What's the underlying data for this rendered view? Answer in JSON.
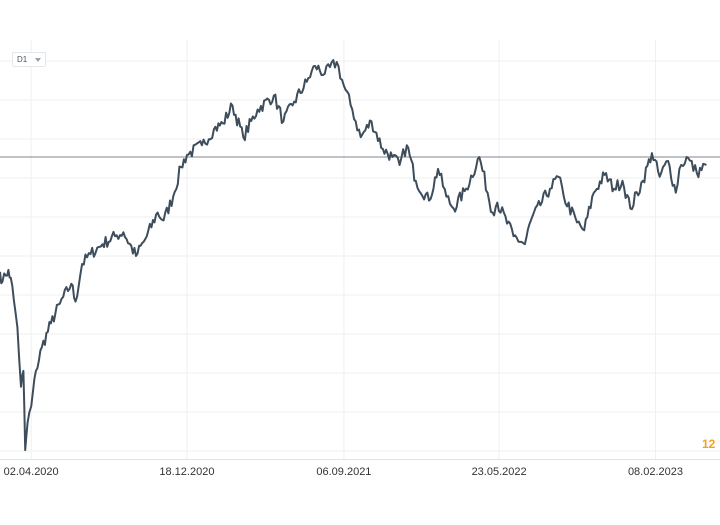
{
  "toolbar": {
    "timeframe_label": "D1"
  },
  "price_label": "12",
  "colors": {
    "line": "#3e4d5b",
    "grid": "#eef0f2",
    "ref_line": "#7f8790",
    "price": "#f3a21c",
    "axis": "#dfe3e7"
  },
  "chart_data": {
    "type": "line",
    "title": "",
    "xlabel": "",
    "ylabel": "",
    "timeframe": "D1",
    "x_ticks": [
      "02.04.2020",
      "18.12.2020",
      "06.09.2021",
      "23.05.2022",
      "08.02.2023"
    ],
    "xlim": [
      "2020-02-10",
      "2023-05-10"
    ],
    "ylim": [
      0,
      100
    ],
    "y_axis_labels_visible": false,
    "grid": true,
    "reference_line_value": 76.0,
    "series": [
      {
        "x": [
          "2020-02-10",
          "2020-02-14",
          "2020-02-20",
          "2020-02-24",
          "2020-02-28",
          "2020-03-04",
          "2020-03-10",
          "2020-03-16",
          "2020-03-20",
          "2020-03-23",
          "2020-03-27",
          "2020-04-02",
          "2020-04-10",
          "2020-04-20",
          "2020-05-05",
          "2020-05-20",
          "2020-06-08",
          "2020-06-15",
          "2020-06-26",
          "2020-07-10",
          "2020-07-30",
          "2020-08-20",
          "2020-09-03",
          "2020-09-24",
          "2020-10-12",
          "2020-10-30",
          "2020-11-09",
          "2020-11-25",
          "2020-12-08",
          "2020-12-18",
          "2021-01-12",
          "2021-02-01",
          "2021-02-16",
          "2021-03-04",
          "2021-03-22",
          "2021-04-15",
          "2021-05-12",
          "2021-05-28",
          "2021-06-15",
          "2021-07-06",
          "2021-07-20",
          "2021-08-05",
          "2021-08-25",
          "2021-09-06",
          "2021-09-20",
          "2021-10-04",
          "2021-10-22",
          "2021-11-10",
          "2021-11-26",
          "2021-12-08",
          "2021-12-20",
          "2022-01-04",
          "2022-01-26",
          "2022-02-10",
          "2022-02-24",
          "2022-03-08",
          "2022-03-29",
          "2022-04-20",
          "2022-05-12",
          "2022-05-20",
          "2022-06-16",
          "2022-07-05",
          "2022-07-15",
          "2022-08-16",
          "2022-08-30",
          "2022-09-08",
          "2022-09-30",
          "2022-10-12",
          "2022-10-28",
          "2022-11-15",
          "2022-12-01",
          "2022-12-15",
          "2022-12-28",
          "2023-01-18",
          "2023-02-02",
          "2023-02-15",
          "2023-03-01",
          "2023-03-14",
          "2023-03-20",
          "2023-04-01",
          "2023-04-18",
          "2023-05-04"
        ],
        "values": [
          47.0,
          44.5,
          46.0,
          47.5,
          45.5,
          40.0,
          33.0,
          18.0,
          22.0,
          2.0,
          9.0,
          13.0,
          22.0,
          28.0,
          34.0,
          39.0,
          44.0,
          39.5,
          49.0,
          51.5,
          54.0,
          56.0,
          57.0,
          51.0,
          56.0,
          62.0,
          60.0,
          66.0,
          73.5,
          76.5,
          79.0,
          83.0,
          84.5,
          89.0,
          81.0,
          88.0,
          91.5,
          85.0,
          90.0,
          95.0,
          99.0,
          97.0,
          100.0,
          94.0,
          88.0,
          81.0,
          85.0,
          78.0,
          76.0,
          74.0,
          79.0,
          70.0,
          65.0,
          73.0,
          66.0,
          63.0,
          68.0,
          76.0,
          62.0,
          64.5,
          56.0,
          54.0,
          60.0,
          68.0,
          71.0,
          66.0,
          59.5,
          57.5,
          67.0,
          71.5,
          68.0,
          70.0,
          63.0,
          70.0,
          77.0,
          71.0,
          75.0,
          67.0,
          73.0,
          76.0,
          72.0,
          74.0
        ]
      }
    ]
  }
}
